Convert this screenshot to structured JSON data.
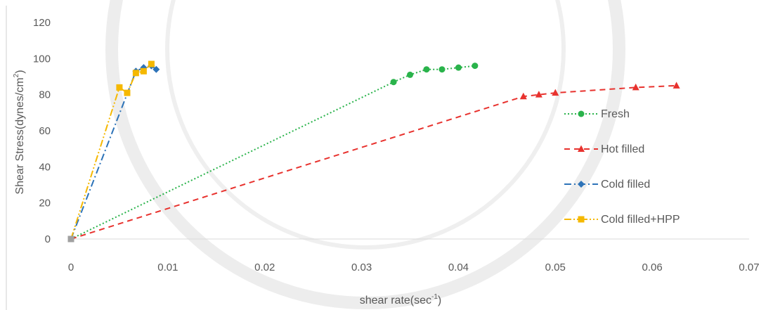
{
  "chart_data": {
    "type": "scatter",
    "title": "",
    "xlabel": "shear rate(sec",
    "xlabel_sup": "-1",
    "xlabel_end": ")",
    "ylabel": "Shear Stress(dynes/cm",
    "ylabel_sup": "2",
    "ylabel_end": ")",
    "xlim": [
      0,
      0.07
    ],
    "ylim": [
      0,
      120
    ],
    "x_ticks": [
      "0",
      "0.01",
      "0.02",
      "0.03",
      "0.04",
      "0.05",
      "0.06",
      "0.07"
    ],
    "y_ticks": [
      "0",
      "20",
      "40",
      "60",
      "80",
      "100",
      "120"
    ],
    "grid": false,
    "legend_position": "right",
    "series": [
      {
        "name": "Fresh",
        "color": "#2ab34b",
        "marker": "circle",
        "line_style": "dotted",
        "points": [
          [
            0,
            0
          ],
          [
            0.0333,
            87
          ],
          [
            0.035,
            91
          ],
          [
            0.0367,
            94
          ],
          [
            0.0383,
            94
          ],
          [
            0.04,
            95
          ],
          [
            0.0417,
            96
          ]
        ]
      },
      {
        "name": "Hot filled",
        "color": "#e8322e",
        "marker": "triangle",
        "line_style": "dashed",
        "points": [
          [
            0,
            0
          ],
          [
            0.0467,
            79
          ],
          [
            0.0483,
            80
          ],
          [
            0.05,
            81
          ],
          [
            0.0583,
            84
          ],
          [
            0.0625,
            85
          ]
        ]
      },
      {
        "name": "Cold filled",
        "color": "#2d73b8",
        "marker": "diamond",
        "line_style": "dash-dot",
        "points": [
          [
            0,
            0
          ],
          [
            0.0067,
            93
          ],
          [
            0.0075,
            95
          ],
          [
            0.0083,
            96
          ],
          [
            0.0088,
            94
          ]
        ]
      },
      {
        "name": "Cold filled+HPP",
        "color": "#f5b800",
        "marker": "square",
        "line_style": "dash-dot-dot",
        "points": [
          [
            0,
            0
          ],
          [
            0.005,
            84
          ],
          [
            0.0058,
            81
          ],
          [
            0.0067,
            92
          ],
          [
            0.0075,
            93
          ],
          [
            0.0083,
            97
          ]
        ]
      }
    ]
  }
}
